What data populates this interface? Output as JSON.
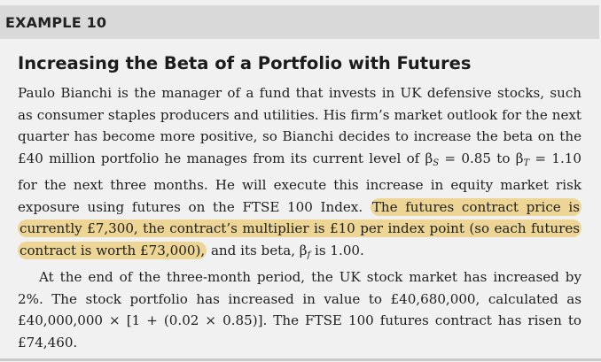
{
  "header": {
    "label": "EXAMPLE 10"
  },
  "title": "Increasing the Beta of a Portfolio with Futures",
  "paragraph1": {
    "text_a": "Paulo Bianchi is the manager of a fund that invests in UK defensive stocks, such as consumer staples producers and utilities. His firm’s market outlook for the next quarter has become more positive, so Bianchi decides to increase the beta on the £40 million portfolio he manages from its current level of β",
    "sub_s": "S",
    "text_b": " = 0.85 to β",
    "sub_t": "T",
    "text_c": " = 1.10 for the next three months. He will execute this increase in equity market risk exposure using futures on the FTSE 100 Index. ",
    "highlight": "The futures contract price is currently £7,300, the contract’s multiplier is £10 per index point (so each futures contract is worth £73,000),",
    "text_d": " and its beta, β",
    "sub_f": "f",
    "text_e": " is 1.00."
  },
  "paragraph2": {
    "text": "At the end of the three-month period, the UK stock market has increased by 2%. The stock portfolio has increased in value to £40,680,000, calculated as £40,000,000 × [1 + (0.02 × 0.85)]. The FTSE 100 futures contract has risen to £74,460."
  },
  "colors": {
    "header_bg": "#d9d9d9",
    "page_bg": "#f1f1f1",
    "highlight": "#ecd595"
  }
}
